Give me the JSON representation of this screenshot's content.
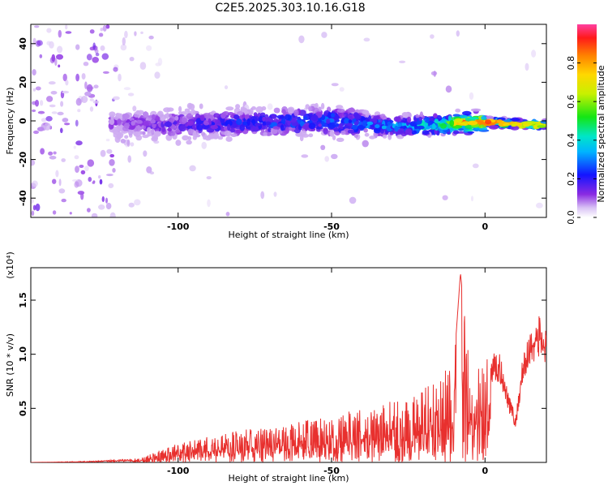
{
  "title": "C2E5.2025.303.10.16.G18",
  "chart_data": [
    {
      "type": "heatmap",
      "xlabel": "Height of straight line (km)",
      "ylabel": "Frequency (Hz)",
      "xlim": [
        -148,
        20
      ],
      "ylim": [
        -50,
        50
      ],
      "xticks": [
        -100,
        -50,
        0
      ],
      "yticks": [
        -40,
        -20,
        0,
        20,
        40
      ],
      "colorbar": {
        "label": "Normalized spectral amplitude",
        "range": [
          0,
          1
        ],
        "ticks": [
          0.0,
          0.2,
          0.4,
          0.6,
          0.8
        ],
        "tick_labels": [
          "0.0",
          "0.2",
          "0.4",
          "0.6",
          "0.8"
        ]
      },
      "ridge": [
        {
          "x": -120,
          "y": -1,
          "amp": 0.12
        },
        {
          "x": -100,
          "y": -2,
          "amp": 0.18
        },
        {
          "x": -75,
          "y": -1,
          "amp": 0.25
        },
        {
          "x": -50,
          "y": 0,
          "amp": 0.3
        },
        {
          "x": -30,
          "y": -3,
          "amp": 0.35
        },
        {
          "x": -15,
          "y": -2,
          "amp": 0.5
        },
        {
          "x": -5,
          "y": -1,
          "amp": 0.9
        },
        {
          "x": 5,
          "y": -1,
          "amp": 0.85
        },
        {
          "x": 15,
          "y": -2,
          "amp": 0.7
        }
      ]
    },
    {
      "type": "line",
      "xlabel": "Height of straight line (km)",
      "ylabel": "SNR (10 * v/v)",
      "scale_label": "(x10⁴)",
      "xlim": [
        -148,
        20
      ],
      "ylim": [
        0,
        1.8
      ],
      "xticks": [
        -100,
        -50,
        0
      ],
      "yticks": [
        0.5,
        1.0,
        1.5
      ],
      "ytick_labels": [
        "0.5",
        "1.0",
        "1.5"
      ],
      "color": "#e8302e",
      "series": [
        {
          "x": [
            -148,
            -130,
            -115,
            -110,
            -105,
            -100,
            -90,
            -80,
            -70,
            -60,
            -50,
            -40,
            -30,
            -25,
            -20,
            -15,
            -10,
            -8,
            -5,
            0,
            5,
            8,
            10,
            12,
            15,
            18,
            20
          ],
          "values": [
            0.0,
            0.01,
            0.03,
            0.07,
            0.12,
            0.18,
            0.24,
            0.3,
            0.33,
            0.38,
            0.43,
            0.5,
            0.58,
            0.62,
            0.7,
            0.78,
            0.95,
            1.75,
            0.9,
            1.0,
            0.95,
            0.6,
            0.4,
            0.9,
            1.2,
            1.3,
            1.15
          ]
        }
      ]
    }
  ]
}
